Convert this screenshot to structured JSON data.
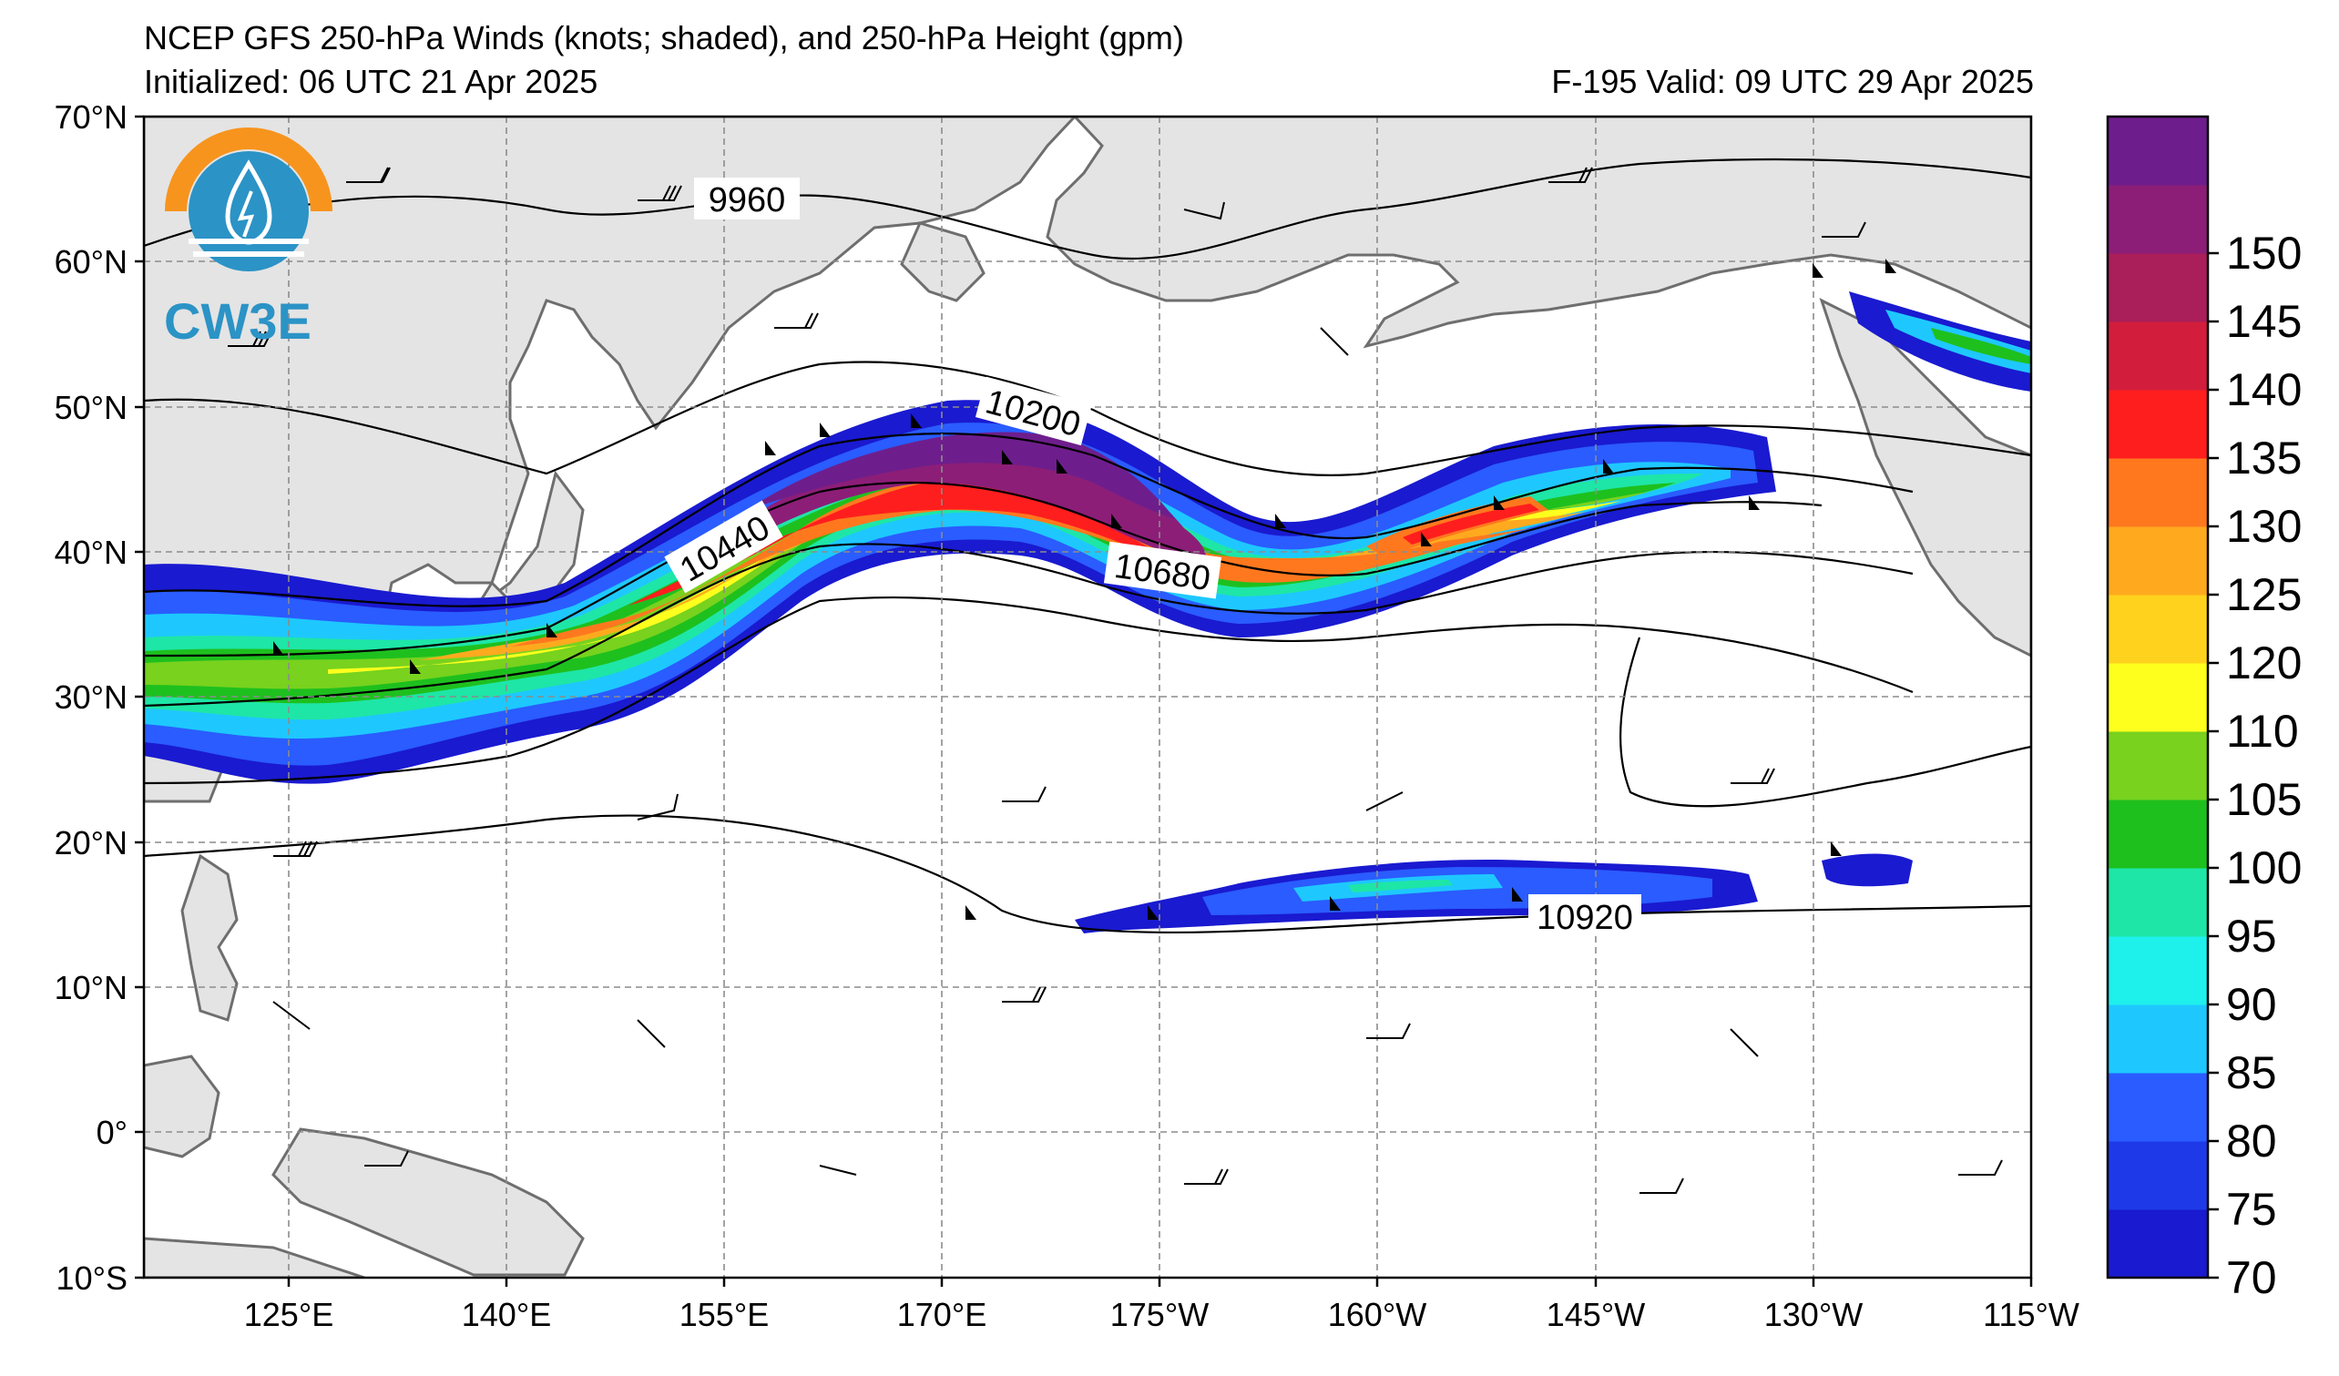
{
  "header": {
    "title": "NCEP GFS 250-hPa Winds (knots; shaded), and 250-hPa Height (gpm)",
    "initialized": "Initialized: 06 UTC 21 Apr 2025",
    "valid": "F-195  Valid: 09 UTC 29 Apr 2025"
  },
  "logo": {
    "text": "CW3E",
    "color": "#2b93c6",
    "accent": "#f7941d"
  },
  "map": {
    "lat_labels": [
      "70°N",
      "60°N",
      "50°N",
      "40°N",
      "30°N",
      "20°N",
      "10°N",
      "0°",
      "10°S"
    ],
    "lon_labels": [
      "125°E",
      "140°E",
      "155°E",
      "170°E",
      "175°W",
      "160°W",
      "145°W",
      "130°W",
      "115°W"
    ],
    "lat_range": [
      -10,
      70
    ],
    "lon_range_east": [
      115,
      245
    ],
    "grid": true,
    "land_color": "#e4e4e4",
    "coast_color": "#6e6e6e"
  },
  "contours": {
    "labels": [
      "9960",
      "10200",
      "10440",
      "10680",
      "10920"
    ],
    "units": "gpm"
  },
  "colorbar": {
    "ticks": [
      "70",
      "75",
      "80",
      "85",
      "90",
      "95",
      "100",
      "105",
      "110",
      "120",
      "125",
      "130",
      "135",
      "140",
      "145",
      "150"
    ],
    "colors": [
      "#1a1ad0",
      "#1e3ae8",
      "#2a5cff",
      "#1ec8ff",
      "#1ef0ec",
      "#1ee6a6",
      "#1ec01e",
      "#78d21e",
      "#ffff1e",
      "#ffd21e",
      "#ffaa1e",
      "#ff781e",
      "#ff1e1e",
      "#d21e3c",
      "#aa1e5a",
      "#8c1e78",
      "#6e1e8c"
    ]
  },
  "chart_data": {
    "type": "map",
    "jet_streams": [
      {
        "name": "north-pacific-jet",
        "max_wind_kt": 150,
        "core": [
          [
            117,
            34
          ],
          [
            135,
            33
          ],
          [
            150,
            38
          ],
          [
            165,
            45
          ],
          [
            180,
            45
          ],
          [
            195,
            40
          ],
          [
            215,
            42
          ],
          [
            227,
            44
          ]
        ]
      },
      {
        "name": "subtropical-jet",
        "max_wind_kt": 85,
        "core": [
          [
            183,
            15
          ],
          [
            205,
            16
          ],
          [
            220,
            17
          ]
        ]
      },
      {
        "name": "gulf-of-alaska-jet",
        "max_wind_kt": 95,
        "core": [
          [
            237,
            56
          ],
          [
            245,
            52
          ]
        ]
      }
    ]
  }
}
